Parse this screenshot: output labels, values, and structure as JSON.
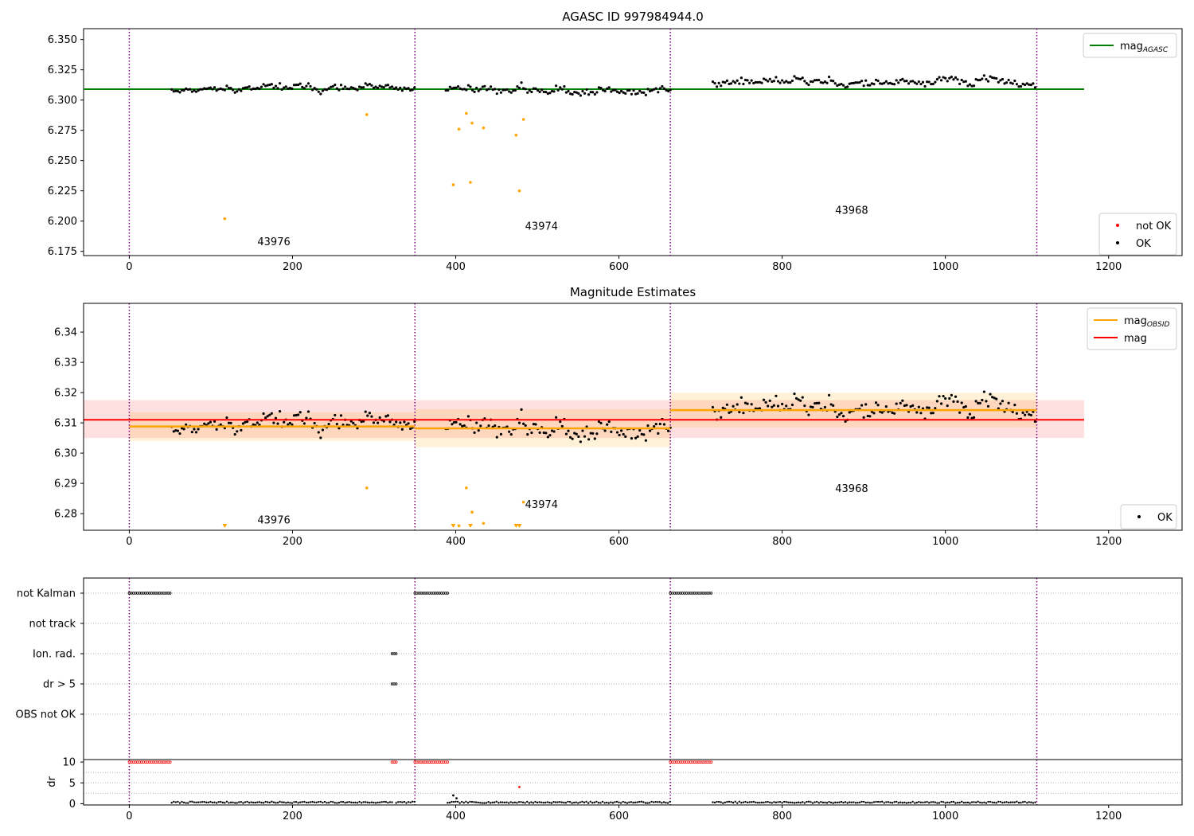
{
  "chart_data": [
    {
      "type": "scatter",
      "title": "AGASC ID 997984944.0",
      "xlabel": "",
      "ylabel": "",
      "xlim": [
        -56,
        1290
      ],
      "ylim": [
        6.1715,
        6.359
      ],
      "xticks": [
        0,
        200,
        400,
        600,
        800,
        1000,
        1200
      ],
      "yticks": [
        6.175,
        6.2,
        6.225,
        6.25,
        6.275,
        6.3,
        6.325,
        6.35
      ],
      "ytick_decimals": 3,
      "grid": false,
      "colors": {
        "agasc_line": "#008000",
        "ok": "#000000",
        "not_ok": "#ff0000",
        "outlier": "#ffa500",
        "boundary": "#800080"
      },
      "obs_boundaries": [
        0,
        350,
        663,
        1112
      ],
      "obs_labels": [
        {
          "text": "43976",
          "x": 157,
          "y": 6.18
        },
        {
          "text": "43974",
          "x": 485,
          "y": 6.193
        },
        {
          "text": "43968",
          "x": 865,
          "y": 6.206
        }
      ],
      "mag_agasc": 6.309,
      "mag_agasc_xrange": [
        -56,
        1170
      ],
      "legends": [
        {
          "position": "top-right",
          "entries": [
            {
              "label": "mag",
              "sub": "AGASC",
              "symbol": "line",
              "color": "#008000"
            }
          ]
        },
        {
          "position": "bottom-right",
          "entries": [
            {
              "label": "not OK",
              "symbol": "dot",
              "color": "#ff0000"
            },
            {
              "label": "OK",
              "symbol": "dot",
              "color": "#000000"
            }
          ]
        }
      ],
      "ok_segments": [
        {
          "x0": 52,
          "x1": 350,
          "mean": 6.3095,
          "amp": 0.0055,
          "step": 2.5
        },
        {
          "x0": 388,
          "x1": 663,
          "mean": 6.3085,
          "amp": 0.0065,
          "step": 2.5
        },
        {
          "x0": 715,
          "x1": 1112,
          "mean": 6.3145,
          "amp": 0.0065,
          "step": 2.5
        }
      ],
      "outlier_points": [
        {
          "x": 117,
          "y": 6.202
        },
        {
          "x": 291,
          "y": 6.288
        },
        {
          "x": 397,
          "y": 6.23
        },
        {
          "x": 404,
          "y": 6.276
        },
        {
          "x": 413,
          "y": 6.289
        },
        {
          "x": 418,
          "y": 6.232
        },
        {
          "x": 420,
          "y": 6.281
        },
        {
          "x": 434,
          "y": 6.277
        },
        {
          "x": 474,
          "y": 6.271
        },
        {
          "x": 478,
          "y": 6.225
        },
        {
          "x": 483,
          "y": 6.284
        }
      ]
    },
    {
      "type": "scatter",
      "title": "Magnitude Estimates",
      "xlabel": "",
      "ylabel": "",
      "xlim": [
        -56,
        1290
      ],
      "ylim": [
        6.2745,
        6.3495
      ],
      "xticks": [
        0,
        200,
        400,
        600,
        800,
        1000,
        1200
      ],
      "yticks": [
        6.28,
        6.29,
        6.3,
        6.31,
        6.32,
        6.33,
        6.34
      ],
      "ytick_decimals": 2,
      "grid": false,
      "colors": {
        "mag_line": "#ff0000",
        "mag_obsid": "#ffa500",
        "ok": "#000000",
        "outlier": "#ffa500",
        "boundary": "#800080"
      },
      "obs_boundaries": [
        0,
        350,
        663,
        1112
      ],
      "obs_labels": [
        {
          "text": "43976",
          "x": 157,
          "y": 6.2767
        },
        {
          "text": "43974",
          "x": 485,
          "y": 6.2819
        },
        {
          "text": "43968",
          "x": 865,
          "y": 6.2871
        }
      ],
      "mag": {
        "value": 6.311,
        "band": [
          6.305,
          6.3175
        ],
        "xrange": [
          -56,
          1170
        ]
      },
      "mag_obsid": [
        {
          "x0": 0,
          "x1": 350,
          "value": 6.3088,
          "band": [
            6.304,
            6.3135
          ]
        },
        {
          "x0": 350,
          "x1": 663,
          "value": 6.3082,
          "band": [
            6.302,
            6.3145
          ]
        },
        {
          "x0": 663,
          "x1": 1112,
          "value": 6.3142,
          "band": [
            6.3085,
            6.32
          ]
        }
      ],
      "legends": [
        {
          "position": "top-right",
          "entries": [
            {
              "label": "mag",
              "sub": "OBSID",
              "symbol": "line",
              "color": "#ffa500"
            },
            {
              "label": "mag",
              "symbol": "line",
              "color": "#ff0000"
            }
          ]
        },
        {
          "position": "bottom-right",
          "entries": [
            {
              "label": "OK",
              "symbol": "dot",
              "color": "#000000"
            }
          ]
        }
      ],
      "ok_segments": [
        {
          "x0": 52,
          "x1": 350,
          "mean": 6.3095,
          "amp": 0.0055,
          "step": 2.5
        },
        {
          "x0": 388,
          "x1": 663,
          "mean": 6.3085,
          "amp": 0.0065,
          "step": 2.5
        },
        {
          "x0": 715,
          "x1": 1112,
          "mean": 6.3145,
          "amp": 0.0065,
          "step": 2.5
        }
      ],
      "outlier_points": [
        {
          "x": 291,
          "y": 6.2885
        },
        {
          "x": 404,
          "y": 6.276
        },
        {
          "x": 413,
          "y": 6.2885
        },
        {
          "x": 420,
          "y": 6.2805
        },
        {
          "x": 434,
          "y": 6.2768
        },
        {
          "x": 483,
          "y": 6.2838
        }
      ],
      "below_markers": [
        117,
        397,
        418,
        474,
        478
      ]
    },
    {
      "type": "scatter",
      "title": "",
      "xlabel": "",
      "ylabel": "",
      "xlim": [
        -56,
        1290
      ],
      "ylim": [
        5.5,
        -0.5
      ],
      "xticks": [
        0,
        200,
        400,
        600,
        800,
        1000,
        1200
      ],
      "grid": true,
      "categories": [
        "not Kalman",
        "not track",
        "Ion. rad.",
        "dr > 5",
        "OBS not OK"
      ],
      "obs_boundaries": [
        0,
        350,
        663,
        1112
      ],
      "flags": [
        {
          "category": "not Kalman",
          "ranges": [
            [
              0,
              52
            ],
            [
              350,
              390
            ],
            [
              663,
              715
            ]
          ]
        },
        {
          "category": "not track",
          "ranges": []
        },
        {
          "category": "Ion. rad.",
          "ranges": [
            [
              322,
              327
            ]
          ]
        },
        {
          "category": "dr > 5",
          "ranges": [
            [
              322,
              327
            ]
          ]
        },
        {
          "category": "OBS not OK",
          "ranges": []
        }
      ]
    },
    {
      "type": "scatter",
      "title": "",
      "xlabel": "",
      "ylabel": "dr",
      "xlim": [
        -56,
        1290
      ],
      "ylim": [
        -0.3,
        10.6
      ],
      "xticks": [
        0,
        200,
        400,
        600,
        800,
        1000,
        1200
      ],
      "yticks": [
        0,
        5,
        10
      ],
      "grid": true,
      "obs_boundaries": [
        0,
        350,
        663,
        1112
      ],
      "capped": {
        "value": 10,
        "color": "#ff0000",
        "ranges": [
          [
            0,
            52
          ],
          [
            322,
            327
          ],
          [
            350,
            390
          ],
          [
            663,
            715
          ]
        ]
      },
      "baseline": {
        "value": 0.15,
        "color": "#000000",
        "ranges": [
          [
            52,
            322
          ],
          [
            327,
            350
          ],
          [
            390,
            663
          ],
          [
            715,
            1112
          ]
        ]
      },
      "extra_points": [
        {
          "x": 397,
          "y": 2.0,
          "color": "#000000"
        },
        {
          "x": 401,
          "y": 1.3,
          "color": "#000000"
        },
        {
          "x": 478,
          "y": 4.0,
          "color": "#ff0000"
        }
      ]
    }
  ]
}
